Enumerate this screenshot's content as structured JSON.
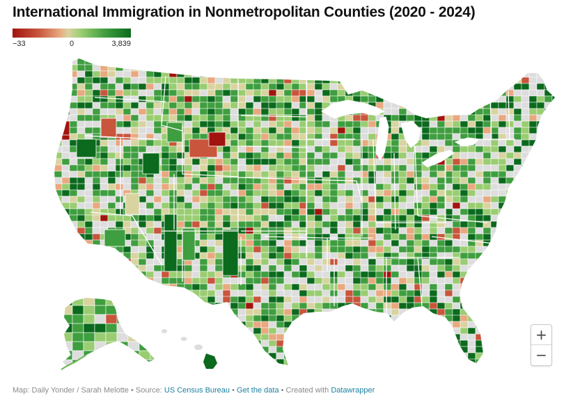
{
  "title": "International Immigration in Nonmetropolitan Counties (2020 - 2024)",
  "legend": {
    "min_label": "−33",
    "mid_label": "0",
    "max_label": "3,839",
    "colors": {
      "neg_strong": "#a1140f",
      "neg_mid": "#c8553c",
      "neg_light": "#e9a87f",
      "neutral": "#d9d3a0",
      "pos_light": "#9acd72",
      "pos_mid": "#3f9e3f",
      "pos_strong": "#0b6a1d",
      "metro_gray": "#dddddd",
      "border": "#ffffff"
    }
  },
  "map": {
    "subject": "Nonmetropolitan counties of the United States, including Alaska and Hawaii, shaded by international immigration 2020-2024"
  },
  "zoom": {
    "in_label": "+",
    "out_label": "−"
  },
  "footer": {
    "credit": "Map: Daily Yonder / Sarah Melotte",
    "sep1": " • Source: ",
    "source_link": "US Census Bureau",
    "sep2": " • ",
    "data_link": "Get the data",
    "sep3": " • Created with ",
    "tool_link": "Datawrapper"
  }
}
